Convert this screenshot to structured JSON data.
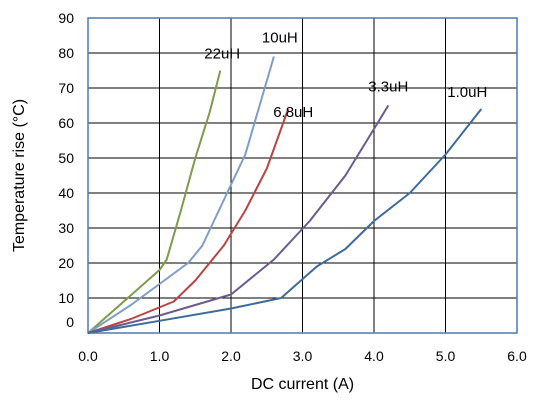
{
  "chart_data": {
    "type": "line",
    "title": "",
    "xlabel": "DC current (A)",
    "ylabel": "Temperature rise (°C)",
    "xlim": [
      0,
      6
    ],
    "ylim": [
      0,
      90
    ],
    "x_ticks": [
      "0.0",
      "1.0",
      "2.0",
      "3.0",
      "4.0",
      "5.0",
      "6.0"
    ],
    "y_ticks": [
      "0",
      "10",
      "20",
      "30",
      "40",
      "50",
      "60",
      "70",
      "80",
      "90"
    ],
    "grid": true,
    "legend": "inline labels at line ends",
    "series": [
      {
        "name": "22uH",
        "color": "#7c9c4a",
        "points": [
          [
            0,
            0
          ],
          [
            0.5,
            9
          ],
          [
            1.0,
            18
          ],
          [
            1.1,
            21
          ],
          [
            1.3,
            35
          ],
          [
            1.5,
            50
          ],
          [
            1.7,
            63
          ],
          [
            1.85,
            75
          ]
        ]
      },
      {
        "name": "10uH",
        "color": "#7f9dc6",
        "points": [
          [
            0,
            0
          ],
          [
            0.6,
            8
          ],
          [
            1.4,
            20
          ],
          [
            1.6,
            25
          ],
          [
            1.9,
            38
          ],
          [
            2.2,
            51
          ],
          [
            2.4,
            65
          ],
          [
            2.6,
            79
          ]
        ]
      },
      {
        "name": "6.8uH",
        "color": "#b74544",
        "points": [
          [
            0,
            0
          ],
          [
            0.6,
            4
          ],
          [
            1.2,
            9
          ],
          [
            1.5,
            15
          ],
          [
            1.9,
            25
          ],
          [
            2.2,
            35
          ],
          [
            2.5,
            47
          ],
          [
            2.8,
            64
          ]
        ]
      },
      {
        "name": "3.3uH",
        "color": "#6b5b8e",
        "points": [
          [
            0,
            0
          ],
          [
            1.0,
            5
          ],
          [
            2.0,
            11
          ],
          [
            2.6,
            21
          ],
          [
            3.1,
            32
          ],
          [
            3.6,
            45
          ],
          [
            3.9,
            55
          ],
          [
            4.2,
            65
          ]
        ]
      },
      {
        "name": "1.0uH",
        "color": "#3d6b9a",
        "points": [
          [
            0,
            0
          ],
          [
            1.0,
            3.5
          ],
          [
            2.0,
            7
          ],
          [
            2.7,
            10
          ],
          [
            3.2,
            19
          ],
          [
            3.6,
            24
          ],
          [
            4.0,
            32
          ],
          [
            4.5,
            40
          ],
          [
            5.0,
            51
          ],
          [
            5.5,
            64
          ]
        ]
      }
    ]
  }
}
